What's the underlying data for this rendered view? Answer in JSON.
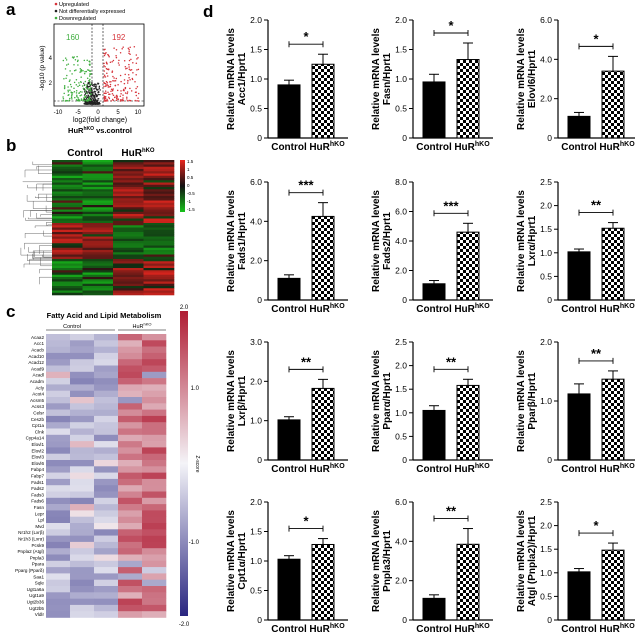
{
  "figure": {
    "panel_letters": [
      "a",
      "b",
      "c",
      "d"
    ]
  },
  "volcano": {
    "legend": [
      "Upregulated",
      "Not differentially expressed",
      "Downregulated"
    ],
    "count_down": "160",
    "count_up": "192",
    "ylabel": "-log10 (p value)",
    "xlabel": "log2(fold change)",
    "xticks": [
      "-10",
      "-5",
      "0",
      "5",
      "10"
    ],
    "yticks": [
      "2",
      "4"
    ],
    "caption_main": "HuR",
    "caption_sup": "hKO",
    "caption_rest": " vs.control",
    "colors": {
      "up": "#d6333a",
      "down": "#3fae3f",
      "ns": "#222222"
    }
  },
  "heatmap_b": {
    "group_labels": [
      "Control",
      "HuR"
    ],
    "group_sup": "hKO",
    "scale_ticks": [
      "1.5",
      "1",
      "0.5",
      "0",
      "-0.5",
      "-1",
      "-1.5"
    ],
    "colors": {
      "high": "#e8261e",
      "mid": "#111111",
      "low": "#17c21b"
    }
  },
  "heatmap_c": {
    "title": "Fatty Acid and Lipid Metabolism",
    "group_labels": [
      "Control",
      "HuR"
    ],
    "group_sup": "hKO",
    "genes": [
      "Acaa2",
      "Acc1",
      "Acacb",
      "Acad10",
      "Acad12",
      "Acad9",
      "Acadl",
      "Acadm",
      "Acly",
      "Acot4",
      "Acsm5",
      "Acss3",
      "Celsr",
      "Ces2b",
      "Cpt1a",
      "Clnk",
      "Cyp4a14",
      "Elovl1",
      "Elovl2",
      "Elovl3",
      "Elovl6",
      "Fabp4",
      "Fabp7",
      "Fads1",
      "Fads2",
      "Fads3",
      "Fads6",
      "Fasn",
      "Lepr",
      "Lpl",
      "Mvd",
      "Nr1h2 (Lxrβ)",
      "Nr1h3 (Lxrα)",
      "Pcsk9",
      "Pnpla2 (Atgl)",
      "Pnpla3",
      "Ppara",
      "Pparg (Pparδ)",
      "Saa1",
      "Sqle",
      "Ugt1a6a",
      "Ugt1a9",
      "Ugt2b36",
      "Ugt2b5",
      "Vldlr"
    ],
    "scale_ticks": [
      "2.0",
      "1.0",
      "0.0",
      "-1.0",
      "-2.0"
    ],
    "scale_label": "Z-score",
    "colors": {
      "high": "#b01c33",
      "mid": "#f4f4f8",
      "low": "#2a2680"
    }
  },
  "chart_data": [
    {
      "type": "bar",
      "categories": [
        "Control",
        "HuR"
      ],
      "category_sup": [
        "",
        "hKO"
      ],
      "values": [
        0.9,
        1.25
      ],
      "errors": [
        0.08,
        0.17
      ],
      "ylabel": "Relative mRNA levels Acc1/Hprt1",
      "ylim": [
        0,
        2.0
      ],
      "yticks": [
        "0",
        "0.5",
        "1.0",
        "1.5",
        "2.0"
      ],
      "significance": "*"
    },
    {
      "type": "bar",
      "categories": [
        "Control",
        "HuR"
      ],
      "category_sup": [
        "",
        "hKO"
      ],
      "values": [
        0.95,
        1.33
      ],
      "errors": [
        0.13,
        0.28
      ],
      "ylabel": "Relative mRNA levels Fasn/Hprt1",
      "ylim": [
        0,
        2.0
      ],
      "yticks": [
        "0",
        "0.5",
        "1.0",
        "1.5",
        "2.0"
      ],
      "significance": "*"
    },
    {
      "type": "bar",
      "categories": [
        "Control",
        "HuR"
      ],
      "category_sup": [
        "",
        "hKO"
      ],
      "values": [
        1.1,
        3.4
      ],
      "errors": [
        0.2,
        0.75
      ],
      "ylabel": "Relative mRNA levels Elovl6/Hprt1",
      "ylim": [
        0,
        6.0
      ],
      "yticks": [
        "0",
        "2.0",
        "4.0",
        "6.0"
      ],
      "significance": "*"
    },
    {
      "type": "bar",
      "categories": [
        "Control",
        "HuR"
      ],
      "category_sup": [
        "",
        "hKO"
      ],
      "values": [
        1.1,
        4.25
      ],
      "errors": [
        0.18,
        0.7
      ],
      "ylabel": "Relative mRNA levels Fads1/Hprt1",
      "ylim": [
        0,
        6.0
      ],
      "yticks": [
        "0",
        "2.0",
        "4.0",
        "6.0"
      ],
      "significance": "***"
    },
    {
      "type": "bar",
      "categories": [
        "Control",
        "HuR"
      ],
      "category_sup": [
        "",
        "hKO"
      ],
      "values": [
        1.1,
        4.6
      ],
      "errors": [
        0.22,
        0.6
      ],
      "ylabel": "Relative mRNA levels Fads2/Hprt1",
      "ylim": [
        0,
        8.0
      ],
      "yticks": [
        "0",
        "2.0",
        "4.0",
        "6.0",
        "8.0"
      ],
      "significance": "***"
    },
    {
      "type": "bar",
      "categories": [
        "Control",
        "HuR"
      ],
      "category_sup": [
        "",
        "hKO"
      ],
      "values": [
        1.02,
        1.52
      ],
      "errors": [
        0.06,
        0.12
      ],
      "ylabel": "Relative mRNA levels Lxrα/Hprt1",
      "ylim": [
        0,
        2.5
      ],
      "yticks": [
        "0",
        "0.5",
        "1.0",
        "1.5",
        "2.0",
        "2.5"
      ],
      "significance": "**"
    },
    {
      "type": "bar",
      "categories": [
        "Control",
        "HuR"
      ],
      "category_sup": [
        "",
        "hKO"
      ],
      "values": [
        1.02,
        1.82
      ],
      "errors": [
        0.08,
        0.23
      ],
      "ylabel": "Relative mRNA levels Lxrβ/Hprt1",
      "ylim": [
        0,
        3.0
      ],
      "yticks": [
        "0",
        "1.0",
        "2.0",
        "3.0"
      ],
      "significance": "**"
    },
    {
      "type": "bar",
      "categories": [
        "Control",
        "HuR"
      ],
      "category_sup": [
        "",
        "hKO"
      ],
      "values": [
        1.05,
        1.58
      ],
      "errors": [
        0.1,
        0.13
      ],
      "ylabel": "Relative mRNA levels Pparα/Hprt1",
      "ylim": [
        0,
        2.5
      ],
      "yticks": [
        "0",
        "0.5",
        "1.0",
        "1.5",
        "2.0",
        "2.5"
      ],
      "significance": "**"
    },
    {
      "type": "bar",
      "categories": [
        "Control",
        "HuR"
      ],
      "category_sup": [
        "",
        "hKO"
      ],
      "values": [
        1.12,
        1.37
      ],
      "errors": [
        0.17,
        0.14
      ],
      "ylabel": "Relative mRNA levels Pparβ/Hprt1",
      "ylim": [
        0,
        2.0
      ],
      "yticks": [
        "0",
        "1.0",
        "2.0"
      ],
      "significance": "**"
    },
    {
      "type": "bar",
      "categories": [
        "Control",
        "HuR"
      ],
      "category_sup": [
        "",
        "hKO"
      ],
      "values": [
        1.03,
        1.28
      ],
      "errors": [
        0.06,
        0.1
      ],
      "ylabel": "Relative mRNA levels Cpt1α/Hprt1",
      "ylim": [
        0,
        2.0
      ],
      "yticks": [
        "0",
        "0.5",
        "1.0",
        "1.5",
        "2.0"
      ],
      "significance": "*"
    },
    {
      "type": "bar",
      "categories": [
        "Control",
        "HuR"
      ],
      "category_sup": [
        "",
        "hKO"
      ],
      "values": [
        1.1,
        3.85
      ],
      "errors": [
        0.18,
        0.8
      ],
      "ylabel": "Relative mRNA levels Pnpla3/Hprt1",
      "ylim": [
        0,
        6.0
      ],
      "yticks": [
        "0",
        "2.0",
        "4.0",
        "6.0"
      ],
      "significance": "**"
    },
    {
      "type": "bar",
      "categories": [
        "Control",
        "HuR"
      ],
      "category_sup": [
        "",
        "hKO"
      ],
      "values": [
        1.02,
        1.48
      ],
      "errors": [
        0.07,
        0.15
      ],
      "ylabel": "Relative mRNA levels Atgl (Pnpla2)/Hprt1",
      "ylim": [
        0,
        2.5
      ],
      "yticks": [
        "0",
        "0.5",
        "1.0",
        "1.5",
        "2.0",
        "2.5"
      ],
      "significance": "*"
    }
  ]
}
